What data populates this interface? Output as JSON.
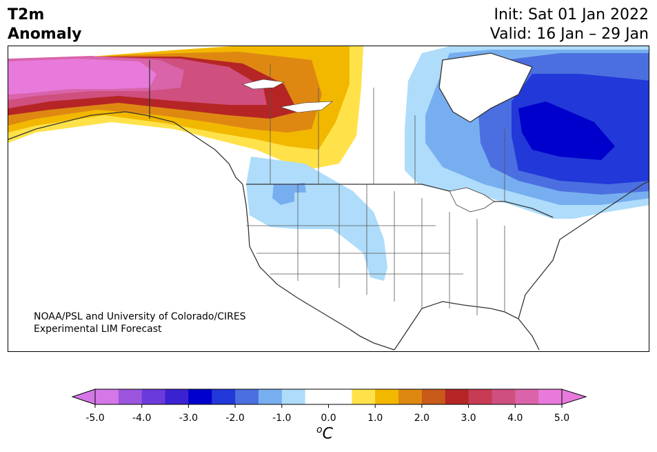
{
  "title": {
    "left_line1": "T2m",
    "left_line2": "Anomaly",
    "init": "Init: Sat 01 Jan 2022",
    "valid": "Valid: 16 Jan – 29 Jan"
  },
  "credit": {
    "line1": "NOAA/PSL and University of Colorado/CIRES",
    "line2": "Experimental LIM Forecast"
  },
  "colorbar": {
    "unit_base": "C",
    "unit_sup": "o",
    "ticks": [
      "-5.0",
      "-4.0",
      "-3.0",
      "-2.0",
      "-1.0",
      "0.0",
      "1.0",
      "2.0",
      "3.0",
      "4.0",
      "5.0"
    ],
    "colors": [
      "#d478e8",
      "#9c55dd",
      "#6b3adb",
      "#3a22d2",
      "#0000cc",
      "#2238d8",
      "#4b6fe0",
      "#77aef0",
      "#aedcfa",
      "#ffffff",
      "#ffffff",
      "#ffe24a",
      "#f2b800",
      "#de8812",
      "#c85a1a",
      "#b52525",
      "#c73b55",
      "#cf4f7e",
      "#d964aa",
      "#e77adb"
    ],
    "under_color": "#d478e8",
    "over_color": "#e77adb"
  },
  "map": {
    "region": "North America",
    "variable": "2m temperature anomaly",
    "colors": {
      "strong_warm": "#e77adb",
      "warm4": "#d964aa",
      "warm3": "#cf4f7e",
      "warm2": "#b52525",
      "warm1": "#c85a1a",
      "warm0": "#de8812",
      "orange": "#f2b800",
      "yellow": "#ffe24a",
      "cool1": "#aedcfa",
      "cool2": "#77aef0",
      "cool3": "#4b6fe0",
      "cool4": "#2238d8",
      "cool5": "#0000cc"
    }
  }
}
